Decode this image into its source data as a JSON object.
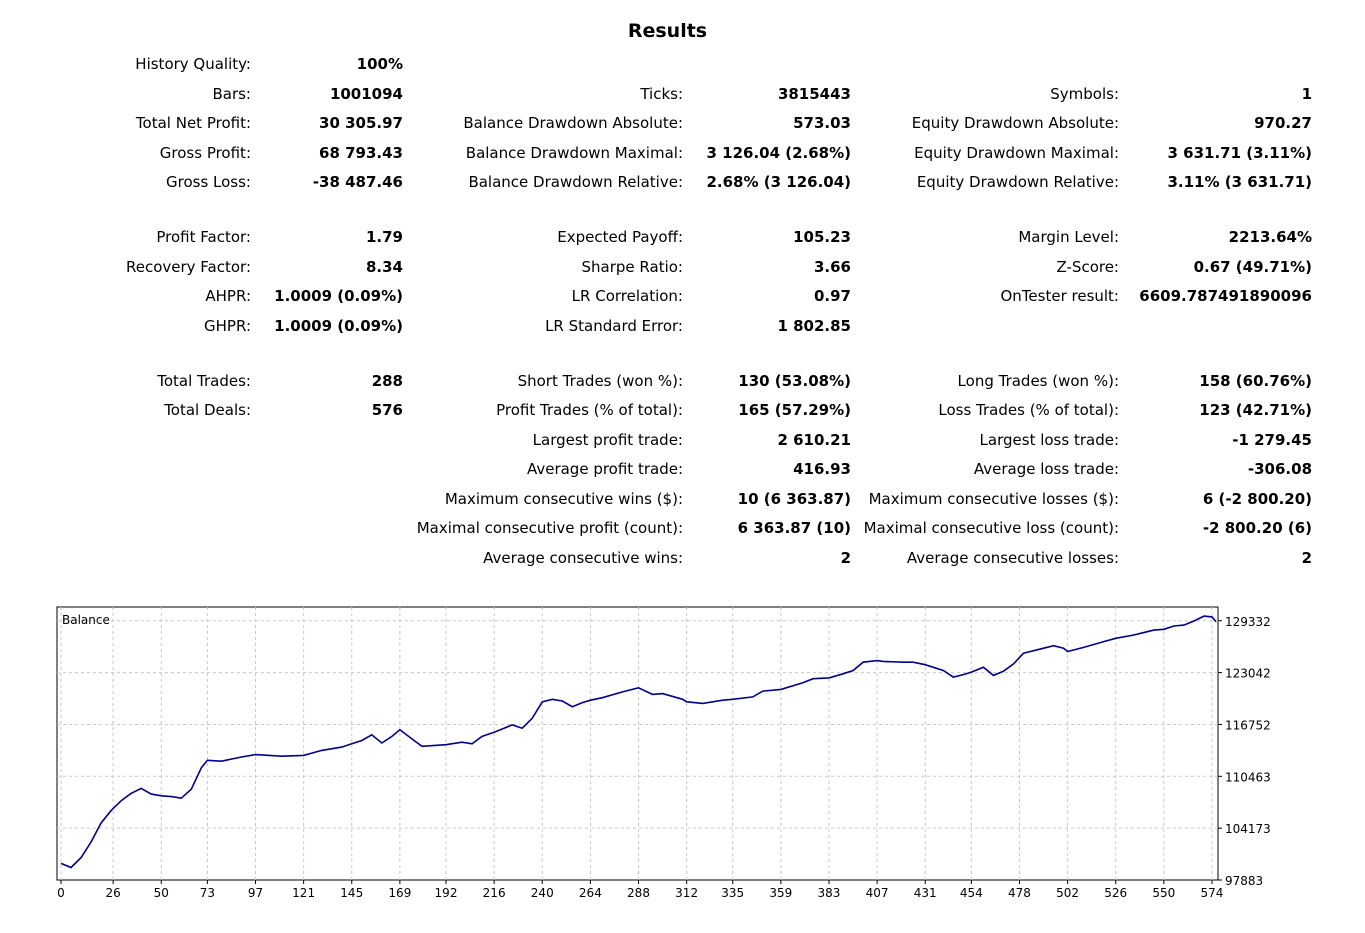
{
  "title": "Results",
  "rows": [
    {
      "top": 55,
      "cells": [
        {
          "label": "History Quality:",
          "value": "100%"
        },
        null,
        null
      ]
    },
    {
      "top": 85,
      "cells": [
        {
          "label": "Bars:",
          "value": "1001094"
        },
        {
          "label": "Ticks:",
          "value": "3815443"
        },
        {
          "label": "Symbols:",
          "value": "1"
        }
      ]
    },
    {
      "top": 114,
      "cells": [
        {
          "label": "Total Net Profit:",
          "value": "30 305.97"
        },
        {
          "label": "Balance Drawdown Absolute:",
          "value": "573.03"
        },
        {
          "label": "Equity Drawdown Absolute:",
          "value": "970.27"
        }
      ]
    },
    {
      "top": 144,
      "cells": [
        {
          "label": "Gross Profit:",
          "value": "68 793.43"
        },
        {
          "label": "Balance Drawdown Maximal:",
          "value": "3 126.04 (2.68%)"
        },
        {
          "label": "Equity Drawdown Maximal:",
          "value": "3 631.71 (3.11%)"
        }
      ]
    },
    {
      "top": 173,
      "cells": [
        {
          "label": "Gross Loss:",
          "value": "-38 487.46"
        },
        {
          "label": "Balance Drawdown Relative:",
          "value": "2.68% (3 126.04)"
        },
        {
          "label": "Equity Drawdown Relative:",
          "value": "3.11% (3 631.71)"
        }
      ]
    },
    {
      "top": 228,
      "cells": [
        {
          "label": "Profit Factor:",
          "value": "1.79"
        },
        {
          "label": "Expected Payoff:",
          "value": "105.23"
        },
        {
          "label": "Margin Level:",
          "value": "2213.64%"
        }
      ]
    },
    {
      "top": 258,
      "cells": [
        {
          "label": "Recovery Factor:",
          "value": "8.34"
        },
        {
          "label": "Sharpe Ratio:",
          "value": "3.66"
        },
        {
          "label": "Z-Score:",
          "value": "0.67 (49.71%)"
        }
      ]
    },
    {
      "top": 287,
      "cells": [
        {
          "label": "AHPR:",
          "value": "1.0009 (0.09%)"
        },
        {
          "label": "LR Correlation:",
          "value": "0.97"
        },
        {
          "label": "OnTester result:",
          "value": "6609.787491890096"
        }
      ]
    },
    {
      "top": 317,
      "cells": [
        {
          "label": "GHPR:",
          "value": "1.0009 (0.09%)"
        },
        {
          "label": "LR Standard Error:",
          "value": "1 802.85"
        },
        null
      ]
    },
    {
      "top": 372,
      "cells": [
        {
          "label": "Total Trades:",
          "value": "288"
        },
        {
          "label": "Short Trades (won %):",
          "value": "130 (53.08%)"
        },
        {
          "label": "Long Trades (won %):",
          "value": "158 (60.76%)"
        }
      ]
    },
    {
      "top": 401,
      "cells": [
        {
          "label": "Total Deals:",
          "value": "576"
        },
        {
          "label": "Profit Trades (% of total):",
          "value": "165 (57.29%)"
        },
        {
          "label": "Loss Trades (% of total):",
          "value": "123 (42.71%)"
        }
      ]
    },
    {
      "top": 431,
      "cells": [
        null,
        {
          "label": "Largest profit trade:",
          "value": "2 610.21"
        },
        {
          "label": "Largest loss trade:",
          "value": "-1 279.45"
        }
      ]
    },
    {
      "top": 460,
      "cells": [
        null,
        {
          "label": "Average profit trade:",
          "value": "416.93"
        },
        {
          "label": "Average loss trade:",
          "value": "-306.08"
        }
      ]
    },
    {
      "top": 490,
      "cells": [
        null,
        {
          "label": "Maximum consecutive wins ($):",
          "value": "10 (6 363.87)"
        },
        {
          "label": "Maximum consecutive losses ($):",
          "value": "6 (-2 800.20)"
        }
      ]
    },
    {
      "top": 519,
      "cells": [
        null,
        {
          "label": "Maximal consecutive profit (count):",
          "value": "6 363.87 (10)"
        },
        {
          "label": "Maximal consecutive loss (count):",
          "value": "-2 800.20 (6)"
        }
      ]
    },
    {
      "top": 549,
      "cells": [
        null,
        {
          "label": "Average consecutive wins:",
          "value": "2"
        },
        {
          "label": "Average consecutive losses:",
          "value": "2"
        }
      ]
    }
  ],
  "chart_data": {
    "type": "line",
    "title": "Balance",
    "line_color": "#00008b",
    "grid": true,
    "xlim": [
      0,
      576
    ],
    "ylim": [
      97883,
      131000
    ],
    "x_ticks": [
      0,
      26,
      50,
      73,
      97,
      121,
      145,
      169,
      192,
      216,
      240,
      264,
      288,
      312,
      335,
      359,
      383,
      407,
      431,
      454,
      478,
      502,
      526,
      550,
      574
    ],
    "y_ticks": [
      129332,
      123042,
      116752,
      110463,
      104173,
      97883
    ],
    "series": [
      {
        "x": [
          0,
          5,
          10,
          15,
          20,
          25,
          30,
          35,
          40,
          45,
          50,
          55,
          60,
          65,
          70,
          73,
          80,
          90,
          97,
          110,
          121,
          130,
          140,
          145,
          150,
          155,
          160,
          165,
          169,
          175,
          180,
          192,
          200,
          205,
          210,
          216,
          225,
          230,
          235,
          240,
          245,
          250,
          255,
          260,
          264,
          270,
          280,
          288,
          295,
          300,
          310,
          312,
          320,
          330,
          335,
          345,
          350,
          359,
          370,
          375,
          383,
          390,
          395,
          400,
          407,
          410,
          420,
          425,
          431,
          440,
          445,
          450,
          454,
          460,
          465,
          470,
          475,
          480,
          490,
          495,
          500,
          502,
          510,
          520,
          526,
          535,
          545,
          550,
          555,
          560,
          565,
          570,
          574,
          576
        ],
        "y": [
          99900,
          99400,
          100600,
          102500,
          104800,
          106300,
          107500,
          108400,
          109000,
          108300,
          108100,
          108000,
          107800,
          108900,
          111500,
          112400,
          112300,
          112800,
          113100,
          112900,
          113000,
          113600,
          114000,
          114400,
          114800,
          115500,
          114500,
          115300,
          116100,
          115000,
          114100,
          114300,
          114600,
          114400,
          115300,
          115800,
          116700,
          116300,
          117500,
          119500,
          119800,
          119600,
          118900,
          119400,
          119700,
          120000,
          120700,
          121200,
          120400,
          120500,
          119800,
          119500,
          119300,
          119700,
          119800,
          120100,
          120800,
          121000,
          121800,
          122300,
          122400,
          122900,
          123300,
          124300,
          124500,
          124400,
          124300,
          124300,
          124000,
          123300,
          122500,
          122800,
          123100,
          123700,
          122700,
          123200,
          124100,
          125400,
          126000,
          126300,
          126000,
          125600,
          126100,
          126800,
          127200,
          127600,
          128200,
          128300,
          128700,
          128800,
          129300,
          129900,
          129800,
          129200
        ]
      }
    ]
  }
}
